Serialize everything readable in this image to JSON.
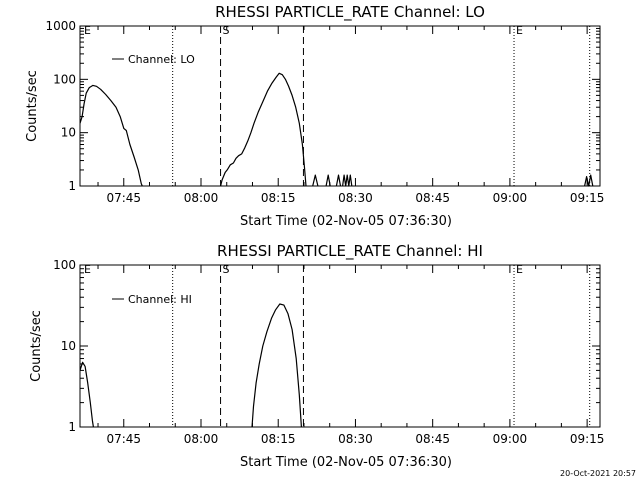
{
  "footer": {
    "timestamp": "20-Oct-2021 20:57"
  },
  "chart_data": [
    {
      "type": "line",
      "title": "RHESSI PARTICLE_RATE Channel: LO",
      "xlabel": "Start Time (02-Nov-05 07:36:30)",
      "ylabel": "Counts/sec",
      "x_unit": "minutes since 07:36:30",
      "xlim": [
        0,
        101
      ],
      "ylim": [
        1,
        1000
      ],
      "yscale": "log",
      "x_ticks": [
        {
          "x": 8.5,
          "label": "07:45"
        },
        {
          "x": 23.5,
          "label": "08:00"
        },
        {
          "x": 38.5,
          "label": "08:15"
        },
        {
          "x": 53.5,
          "label": "08:30"
        },
        {
          "x": 68.5,
          "label": "08:45"
        },
        {
          "x": 83.5,
          "label": "09:00"
        },
        {
          "x": 98.5,
          "label": "09:15"
        }
      ],
      "y_ticks": [
        {
          "y": 1,
          "label": "1"
        },
        {
          "y": 10,
          "label": "10"
        },
        {
          "y": 100,
          "label": "100"
        },
        {
          "y": 1000,
          "label": "1000"
        }
      ],
      "legend": {
        "label": "Channel: LO",
        "position": "top-left"
      },
      "dotted_lines": [
        18.0,
        84.3,
        99.0
      ],
      "dashed_lines": [
        27.3,
        43.4
      ],
      "markers": [
        {
          "x": 0.4,
          "label": "E"
        },
        {
          "x": 27.3,
          "label": "S"
        },
        {
          "x": 84.3,
          "label": "E"
        }
      ],
      "series": [
        {
          "name": "Channel: LO",
          "segments": [
            [
              [
                0.0,
                15
              ],
              [
                0.4,
                20
              ],
              [
                0.8,
                35
              ],
              [
                1.2,
                55
              ],
              [
                1.8,
                70
              ],
              [
                2.5,
                77
              ],
              [
                3.2,
                74
              ],
              [
                4.0,
                65
              ],
              [
                5.0,
                52
              ],
              [
                6.0,
                40
              ],
              [
                7.0,
                30
              ],
              [
                7.8,
                20
              ],
              [
                8.5,
                12
              ],
              [
                9.0,
                11
              ],
              [
                9.7,
                6
              ],
              [
                10.5,
                3.5
              ],
              [
                11.3,
                2
              ],
              [
                11.9,
                1.1
              ],
              [
                12.1,
                1
              ]
            ],
            [
              [
                27.3,
                1
              ],
              [
                27.6,
                1.3
              ],
              [
                28.2,
                1.8
              ],
              [
                28.6,
                2
              ],
              [
                29.2,
                2.5
              ],
              [
                29.8,
                2.7
              ],
              [
                30.3,
                3.3
              ],
              [
                30.8,
                3.7
              ],
              [
                31.4,
                4.0
              ],
              [
                32.0,
                5.2
              ],
              [
                32.6,
                7
              ],
              [
                33.2,
                10
              ],
              [
                33.8,
                15
              ],
              [
                34.6,
                24
              ],
              [
                35.5,
                38
              ],
              [
                36.4,
                60
              ],
              [
                37.3,
                85
              ],
              [
                38.1,
                110
              ],
              [
                38.7,
                130
              ],
              [
                39.3,
                122
              ],
              [
                39.9,
                100
              ],
              [
                40.5,
                75
              ],
              [
                41.2,
                50
              ],
              [
                41.9,
                30
              ],
              [
                42.6,
                15
              ],
              [
                43.2,
                6
              ],
              [
                43.6,
                2.2
              ],
              [
                43.9,
                1
              ]
            ],
            [
              [
                45.2,
                1
              ],
              [
                45.7,
                1.6
              ],
              [
                46.2,
                1
              ]
            ],
            [
              [
                47.8,
                1
              ],
              [
                48.2,
                1.6
              ],
              [
                48.6,
                1
              ]
            ],
            [
              [
                49.8,
                1
              ],
              [
                50.2,
                1.6
              ],
              [
                50.6,
                1
              ]
            ],
            [
              [
                51.0,
                1
              ],
              [
                51.3,
                1.6
              ],
              [
                51.6,
                1
              ],
              [
                51.9,
                1.6
              ],
              [
                52.2,
                1
              ],
              [
                52.5,
                1.6
              ],
              [
                52.8,
                1
              ]
            ],
            [
              [
                98.0,
                1
              ],
              [
                98.4,
                1.5
              ],
              [
                98.8,
                1
              ],
              [
                99.2,
                1.6
              ],
              [
                99.6,
                1
              ]
            ]
          ]
        }
      ]
    },
    {
      "type": "line",
      "title": "RHESSI PARTICLE_RATE Channel: HI",
      "xlabel": "Start Time (02-Nov-05 07:36:30)",
      "ylabel": "Counts/sec",
      "x_unit": "minutes since 07:36:30",
      "xlim": [
        0,
        101
      ],
      "ylim": [
        1,
        100
      ],
      "yscale": "log",
      "x_ticks": [
        {
          "x": 8.5,
          "label": "07:45"
        },
        {
          "x": 23.5,
          "label": "08:00"
        },
        {
          "x": 38.5,
          "label": "08:15"
        },
        {
          "x": 53.5,
          "label": "08:30"
        },
        {
          "x": 68.5,
          "label": "08:45"
        },
        {
          "x": 83.5,
          "label": "09:00"
        },
        {
          "x": 98.5,
          "label": "09:15"
        }
      ],
      "y_ticks": [
        {
          "y": 1,
          "label": "1"
        },
        {
          "y": 10,
          "label": "10"
        },
        {
          "y": 100,
          "label": "100"
        }
      ],
      "legend": {
        "label": "Channel: HI",
        "position": "top-left"
      },
      "dotted_lines": [
        18.0,
        84.3,
        99.0
      ],
      "dashed_lines": [
        27.3,
        43.4
      ],
      "markers": [
        {
          "x": 0.4,
          "label": "E"
        },
        {
          "x": 27.3,
          "label": "S"
        },
        {
          "x": 84.3,
          "label": "E"
        }
      ],
      "series": [
        {
          "name": "Channel: HI",
          "segments": [
            [
              [
                0.0,
                5.0
              ],
              [
                0.5,
                6.3
              ],
              [
                1.0,
                5.6
              ],
              [
                1.5,
                3.5
              ],
              [
                2.0,
                2.0
              ],
              [
                2.4,
                1.2
              ],
              [
                2.6,
                1
              ]
            ],
            [
              [
                33.4,
                1
              ],
              [
                33.7,
                1.8
              ],
              [
                34.2,
                3.5
              ],
              [
                34.8,
                6
              ],
              [
                35.5,
                10
              ],
              [
                36.3,
                15
              ],
              [
                37.2,
                22
              ],
              [
                38.0,
                28
              ],
              [
                38.8,
                33
              ],
              [
                39.6,
                32
              ],
              [
                40.4,
                25
              ],
              [
                41.2,
                16
              ],
              [
                42.0,
                7
              ],
              [
                42.6,
                2.5
              ],
              [
                43.0,
                1
              ]
            ]
          ]
        }
      ]
    }
  ]
}
